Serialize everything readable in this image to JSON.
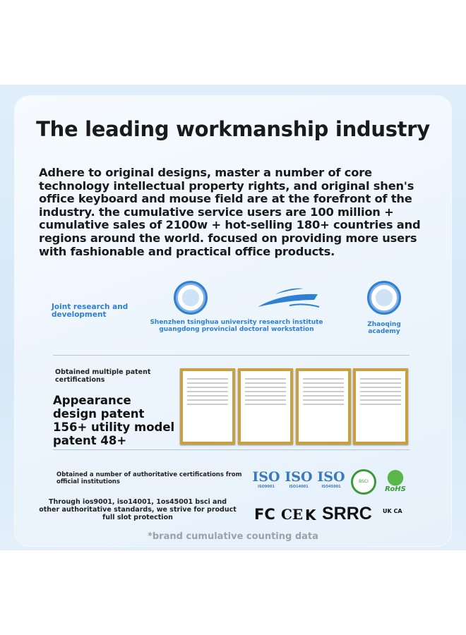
{
  "title": "The leading workmanship industry",
  "intro": "Adhere to original designs, master a number of core technology intellectual property rights, and original shen's office keyboard and mouse field are at the forefront of the industry. the cumulative service users are 100 million + cumulative sales of 2100w + hot-selling 180+ countries and regions around the world. focused on providing more users with fashionable and practical office products.",
  "research": {
    "label": "Joint research and development",
    "partner1": "Shenzhen tsinghua university research institute guangdong provincial doctoral workstation",
    "partner2": "Zhaoqing academy"
  },
  "patents": {
    "label": "Obtained multiple patent certifications",
    "headline": "Appearance design patent 156+ utility model patent 48+"
  },
  "certifications": {
    "label": "Obtained a number of authoritative certifications from official institutions",
    "description": "Through ios9001, iso14001, 1os45001 bsci and other authoritative standards, we strive for product full slot protection",
    "iso": [
      {
        "text": "ISO",
        "sub": "ISO9001"
      },
      {
        "text": "ISO",
        "sub": "ISO14001"
      },
      {
        "text": "ISO",
        "sub": "ISO45001"
      }
    ],
    "marks": {
      "fc": "FC",
      "ce": "CE",
      "srrc": "SRRC",
      "ukca": "UK CA",
      "rohs": "RoHS",
      "bsci": "BSCI"
    }
  },
  "footnote": "*brand cumulative counting data",
  "colors": {
    "accent": "#2e7fd3",
    "gold": "#c9a040",
    "rohs": "#3a9a3a"
  }
}
